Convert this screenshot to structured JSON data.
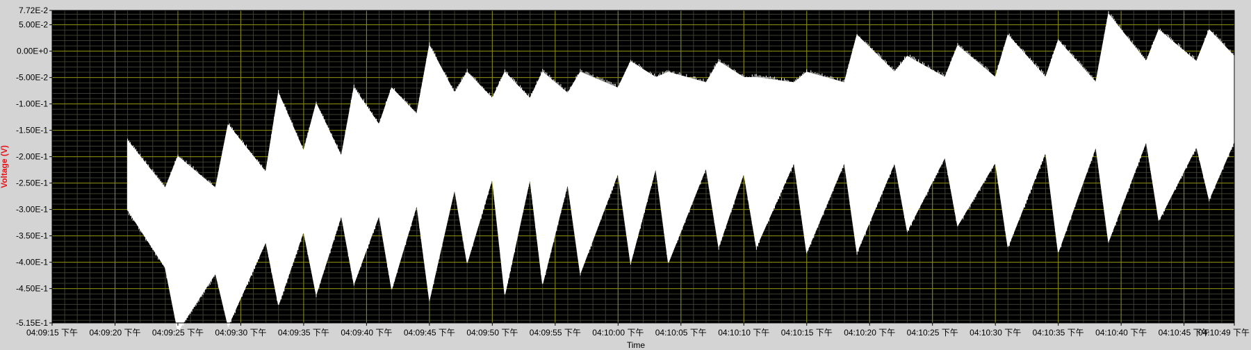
{
  "chart_data": {
    "type": "line",
    "title": "",
    "xlabel": "Time",
    "ylabel": "Voltage (V)",
    "ylim": [
      -0.515,
      0.0772
    ],
    "xlim": [
      "04:09:15 下午",
      "04:10:49 下午"
    ],
    "grid": true,
    "legend": "none",
    "y_tick_labels": [
      "7.72E-2",
      "5.00E-2",
      "0.00E+0",
      "-5.00E-2",
      "-1.00E-1",
      "-1.50E-1",
      "-2.00E-1",
      "-2.50E-1",
      "-3.00E-1",
      "-3.50E-1",
      "-4.00E-1",
      "-4.50E-1",
      "-5.15E-1"
    ],
    "x_tick_labels": [
      "04:09:15 下午",
      "04:09:20 下午",
      "04:09:25 下午",
      "04:09:30 下午",
      "04:09:35 下午",
      "04:09:40 下午",
      "04:09:45 下午",
      "04:09:50 下午",
      "04:09:55 下午",
      "04:10:00 下午",
      "04:10:05 下午",
      "04:10:10 下午",
      "04:10:15 下午",
      "04:10:20 下午",
      "04:10:25 下午",
      "04:10:30 下午",
      "04:10:35 下午",
      "04:10:40 下午",
      "04:10:45 下午",
      "04:10:49 下午"
    ],
    "series": [
      {
        "name": "",
        "color": "#ffffff",
        "x": [
          "04:09:21 下午",
          "04:09:24 下午",
          "04:09:25 下午",
          "04:09:28 下午",
          "04:09:29 下午",
          "04:09:32 下午",
          "04:09:33 下午",
          "04:09:35 下午",
          "04:09:36 下午",
          "04:09:38 下午",
          "04:09:39 下午",
          "04:09:41 下午",
          "04:09:42 下午",
          "04:09:44 下午",
          "04:09:45 下午",
          "04:09:47 下午",
          "04:09:48 下午",
          "04:09:50 下午",
          "04:09:51 下午",
          "04:09:53 下午",
          "04:09:54 下午",
          "04:09:56 下午",
          "04:09:57 下午",
          "04:10:00 下午",
          "04:10:01 下午",
          "04:10:03 下午",
          "04:10:04 下午",
          "04:10:07 下午",
          "04:10:08 下午",
          "04:10:10 下午",
          "04:10:11 下午",
          "04:10:14 下午",
          "04:10:15 下午",
          "04:10:18 下午",
          "04:10:19 下午",
          "04:10:22 下午",
          "04:10:23 下午",
          "04:10:26 下午",
          "04:10:27 下午",
          "04:10:30 下午",
          "04:10:31 下午",
          "04:10:34 下午",
          "04:10:35 下午",
          "04:10:38 下午",
          "04:10:39 下午",
          "04:10:42 下午",
          "04:10:43 下午",
          "04:10:46 下午",
          "04:10:47 下午",
          "04:10:49 下午"
        ],
        "upper": [
          -0.17,
          -0.26,
          -0.2,
          -0.26,
          -0.14,
          -0.23,
          -0.08,
          -0.19,
          -0.1,
          -0.2,
          -0.07,
          -0.14,
          -0.07,
          -0.12,
          0.01,
          -0.08,
          -0.04,
          -0.09,
          -0.04,
          -0.09,
          -0.04,
          -0.08,
          -0.04,
          -0.07,
          -0.02,
          -0.05,
          -0.04,
          -0.06,
          -0.02,
          -0.05,
          -0.05,
          -0.06,
          -0.04,
          -0.06,
          0.03,
          -0.04,
          -0.01,
          -0.05,
          0.01,
          -0.05,
          0.03,
          -0.05,
          0.02,
          -0.06,
          0.07,
          -0.02,
          0.04,
          -0.02,
          0.04,
          -0.01
        ],
        "lower": [
          -0.3,
          -0.41,
          -0.53,
          -0.42,
          -0.52,
          -0.36,
          -0.48,
          -0.34,
          -0.46,
          -0.31,
          -0.44,
          -0.31,
          -0.45,
          -0.29,
          -0.47,
          -0.26,
          -0.4,
          -0.24,
          -0.46,
          -0.24,
          -0.44,
          -0.25,
          -0.42,
          -0.23,
          -0.4,
          -0.22,
          -0.4,
          -0.22,
          -0.37,
          -0.23,
          -0.37,
          -0.21,
          -0.38,
          -0.21,
          -0.38,
          -0.21,
          -0.34,
          -0.2,
          -0.33,
          -0.21,
          -0.37,
          -0.19,
          -0.38,
          -0.18,
          -0.36,
          -0.17,
          -0.32,
          -0.18,
          -0.28,
          -0.17
        ]
      }
    ]
  }
}
